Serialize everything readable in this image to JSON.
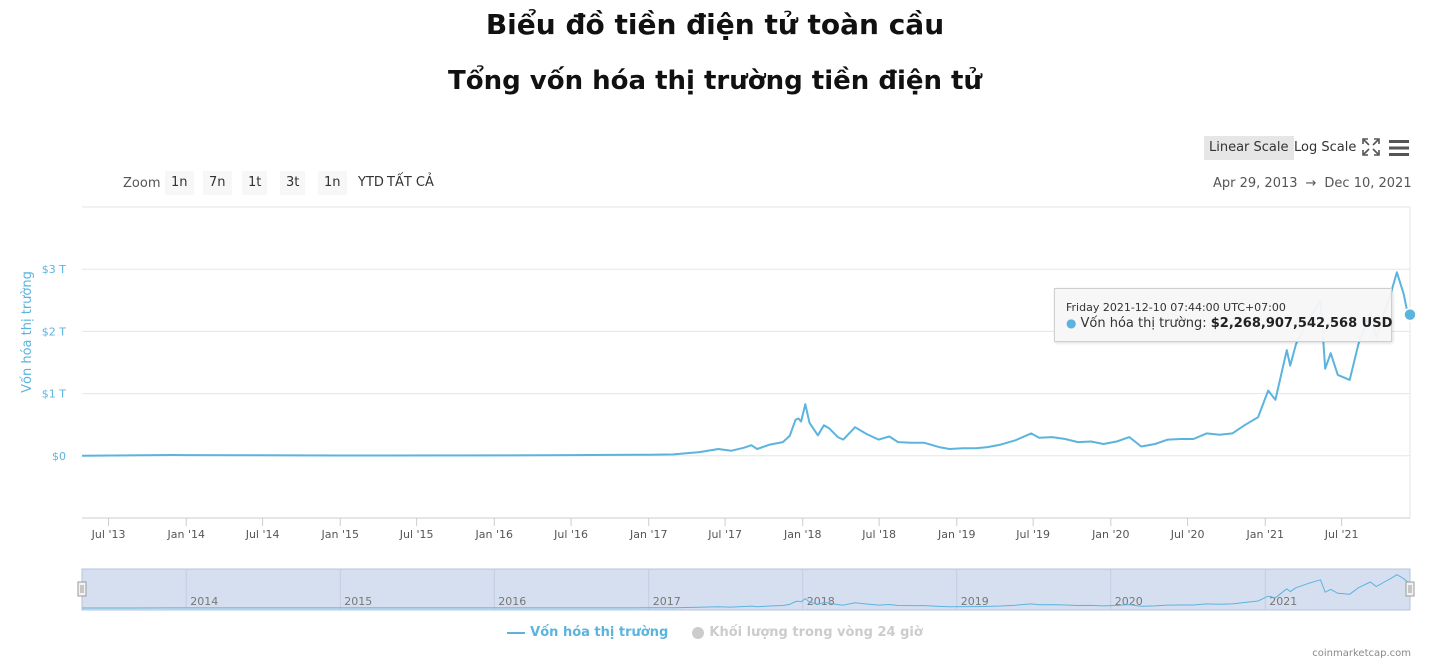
{
  "page": {
    "title": "Biểu đồ tiền điện tử toàn cầu",
    "credit": "coinmarketcap.com"
  },
  "toolbar": {
    "linear_scale": "Linear Scale",
    "log_scale": "Log Scale",
    "fullscreen_icon": "fullscreen-icon",
    "menu_icon": "hamburger-menu-icon"
  },
  "zoom": {
    "label": "Zoom",
    "buttons": [
      "1n",
      "7n",
      "1t",
      "3t",
      "1n",
      "YTD",
      "TẤT CẢ"
    ]
  },
  "date_range": {
    "from": "Apr 29, 2013",
    "arrow": "→",
    "to": "Dec 10, 2021"
  },
  "tooltip": {
    "date": "Friday 2021-12-10 07:44:00 UTC+07:00",
    "label": "Vốn hóa thị trường:",
    "value": "$2,268,907,542,568 USD"
  },
  "legend": {
    "market_cap": "Vốn hóa thị trường",
    "volume": "Khối lượng trong vòng 24 giờ"
  },
  "colors": {
    "series": "#5bb4de",
    "navigator_fill": "#d6dff0",
    "grid": "#e6e6e6"
  },
  "chart_data": {
    "type": "line",
    "title": "Tổng vốn hóa thị trường tiền điện tử",
    "ylabel": "Vốn hóa thị trường",
    "yunit": "trillion USD",
    "ylim": [
      -1,
      4
    ],
    "yticks": [
      0,
      1,
      2,
      3
    ],
    "ytick_labels": [
      "$0",
      "$1 T",
      "$2 T",
      "$3 T"
    ],
    "xlim": [
      "2013-04-29",
      "2021-12-10"
    ],
    "xticks": [
      "2013-07-01",
      "2014-01-01",
      "2014-07-01",
      "2015-01-01",
      "2015-07-01",
      "2016-01-01",
      "2016-07-01",
      "2017-01-01",
      "2017-07-01",
      "2018-01-01",
      "2018-07-01",
      "2019-01-01",
      "2019-07-01",
      "2020-01-01",
      "2020-07-01",
      "2021-01-01",
      "2021-07-01"
    ],
    "xtick_labels": [
      "Jul '13",
      "Jan '14",
      "Jul '14",
      "Jan '15",
      "Jul '15",
      "Jan '16",
      "Jul '16",
      "Jan '17",
      "Jul '17",
      "Jan '18",
      "Jul '18",
      "Jan '19",
      "Jul '19",
      "Jan '20",
      "Jul '20",
      "Jan '21",
      "Jul '21"
    ],
    "navigator_labels": [
      {
        "x": "2014-01-01",
        "label": "2014"
      },
      {
        "x": "2015-01-01",
        "label": "2015"
      },
      {
        "x": "2016-01-01",
        "label": "2016"
      },
      {
        "x": "2017-01-01",
        "label": "2017"
      },
      {
        "x": "2018-01-01",
        "label": "2018"
      },
      {
        "x": "2019-01-01",
        "label": "2019"
      },
      {
        "x": "2020-01-01",
        "label": "2020"
      },
      {
        "x": "2021-01-01",
        "label": "2021"
      }
    ],
    "grid": true,
    "legend_position": "bottom",
    "series": [
      {
        "name": "Vốn hóa thị trường",
        "points": [
          [
            "2013-04-29",
            0.0016
          ],
          [
            "2013-11-30",
            0.013
          ],
          [
            "2014-01-01",
            0.011
          ],
          [
            "2014-06-01",
            0.008
          ],
          [
            "2015-01-01",
            0.005
          ],
          [
            "2016-01-01",
            0.007
          ],
          [
            "2016-07-01",
            0.012
          ],
          [
            "2017-01-01",
            0.018
          ],
          [
            "2017-03-01",
            0.022
          ],
          [
            "2017-05-01",
            0.06
          ],
          [
            "2017-06-15",
            0.11
          ],
          [
            "2017-07-15",
            0.08
          ],
          [
            "2017-08-15",
            0.13
          ],
          [
            "2017-09-01",
            0.17
          ],
          [
            "2017-09-15",
            0.11
          ],
          [
            "2017-10-15",
            0.18
          ],
          [
            "2017-11-15",
            0.22
          ],
          [
            "2017-12-01",
            0.32
          ],
          [
            "2017-12-15",
            0.58
          ],
          [
            "2017-12-22",
            0.6
          ],
          [
            "2017-12-28",
            0.55
          ],
          [
            "2018-01-07",
            0.83
          ],
          [
            "2018-01-17",
            0.53
          ],
          [
            "2018-02-06",
            0.33
          ],
          [
            "2018-02-20",
            0.49
          ],
          [
            "2018-03-05",
            0.44
          ],
          [
            "2018-03-25",
            0.3
          ],
          [
            "2018-04-07",
            0.26
          ],
          [
            "2018-05-05",
            0.46
          ],
          [
            "2018-06-01",
            0.35
          ],
          [
            "2018-06-30",
            0.26
          ],
          [
            "2018-07-25",
            0.31
          ],
          [
            "2018-08-15",
            0.22
          ],
          [
            "2018-09-15",
            0.21
          ],
          [
            "2018-10-15",
            0.21
          ],
          [
            "2018-11-20",
            0.14
          ],
          [
            "2018-12-15",
            0.11
          ],
          [
            "2019-01-15",
            0.12
          ],
          [
            "2019-02-15",
            0.12
          ],
          [
            "2019-03-15",
            0.14
          ],
          [
            "2019-04-15",
            0.18
          ],
          [
            "2019-05-20",
            0.25
          ],
          [
            "2019-06-26",
            0.36
          ],
          [
            "2019-07-15",
            0.29
          ],
          [
            "2019-08-15",
            0.3
          ],
          [
            "2019-09-15",
            0.27
          ],
          [
            "2019-10-15",
            0.22
          ],
          [
            "2019-11-15",
            0.23
          ],
          [
            "2019-12-15",
            0.19
          ],
          [
            "2020-01-15",
            0.23
          ],
          [
            "2020-02-14",
            0.3
          ],
          [
            "2020-03-13",
            0.15
          ],
          [
            "2020-04-15",
            0.19
          ],
          [
            "2020-05-15",
            0.26
          ],
          [
            "2020-06-15",
            0.27
          ],
          [
            "2020-07-15",
            0.27
          ],
          [
            "2020-08-15",
            0.36
          ],
          [
            "2020-09-15",
            0.34
          ],
          [
            "2020-10-15",
            0.36
          ],
          [
            "2020-11-15",
            0.5
          ],
          [
            "2020-12-15",
            0.62
          ],
          [
            "2021-01-08",
            1.05
          ],
          [
            "2021-01-25",
            0.9
          ],
          [
            "2021-02-21",
            1.7
          ],
          [
            "2021-03-01",
            1.45
          ],
          [
            "2021-03-15",
            1.8
          ],
          [
            "2021-04-15",
            2.2
          ],
          [
            "2021-05-12",
            2.5
          ],
          [
            "2021-05-23",
            1.4
          ],
          [
            "2021-06-05",
            1.65
          ],
          [
            "2021-06-22",
            1.3
          ],
          [
            "2021-07-20",
            1.22
          ],
          [
            "2021-08-10",
            1.8
          ],
          [
            "2021-09-07",
            2.3
          ],
          [
            "2021-09-21",
            1.9
          ],
          [
            "2021-10-10",
            2.3
          ],
          [
            "2021-10-25",
            2.6
          ],
          [
            "2021-11-09",
            2.95
          ],
          [
            "2021-11-25",
            2.6
          ],
          [
            "2021-12-04",
            2.3
          ],
          [
            "2021-12-10",
            2.27
          ]
        ]
      }
    ]
  }
}
